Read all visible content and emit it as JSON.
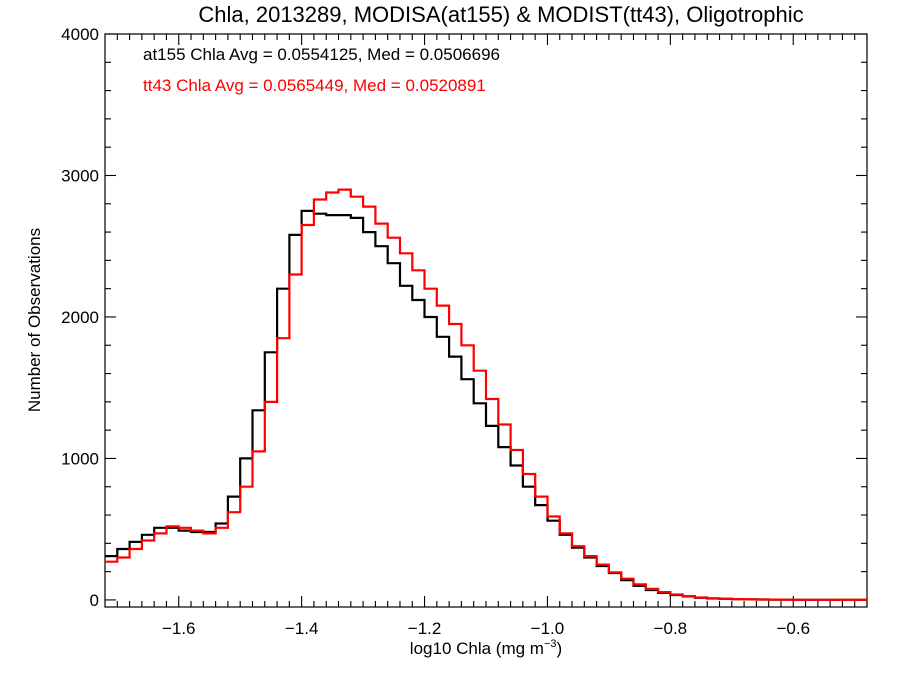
{
  "chart_data": {
    "type": "line",
    "title": "Chla, 2013289, MODISA(at155) & MODIST(tt43), Oligotrophic",
    "xlabel_base": "log10 Chla (mg m",
    "xlabel_exp": "−3",
    "xlabel_close": ")",
    "ylabel": "Number of Observations",
    "xlim": [
      -1.72,
      -0.48
    ],
    "ylim": [
      -50,
      4000
    ],
    "xticks": [
      -1.6,
      -1.4,
      -1.2,
      -1.0,
      -0.8,
      -0.6
    ],
    "xtick_labels": [
      "−1.6",
      "−1.4",
      "−1.2",
      "−1.0",
      "−0.8",
      "−0.6"
    ],
    "yticks": [
      0,
      1000,
      2000,
      3000,
      4000
    ],
    "ytick_labels": [
      "0",
      "1000",
      "2000",
      "3000",
      "4000"
    ],
    "grid": false,
    "step": true,
    "annotations": [
      {
        "text": "at155 Chla Avg = 0.0554125, Med = 0.0506696",
        "color": "#000000"
      },
      {
        "text": "tt43 Chla Avg = 0.0565449, Med = 0.0520891",
        "color": "#ff0000"
      }
    ],
    "series": [
      {
        "color": "#000000",
        "x": [
          -1.72,
          -1.7,
          -1.68,
          -1.66,
          -1.64,
          -1.62,
          -1.6,
          -1.58,
          -1.56,
          -1.54,
          -1.52,
          -1.5,
          -1.48,
          -1.46,
          -1.44,
          -1.42,
          -1.4,
          -1.38,
          -1.36,
          -1.34,
          -1.32,
          -1.3,
          -1.28,
          -1.26,
          -1.24,
          -1.22,
          -1.2,
          -1.18,
          -1.16,
          -1.14,
          -1.12,
          -1.1,
          -1.08,
          -1.06,
          -1.04,
          -1.02,
          -1.0,
          -0.98,
          -0.96,
          -0.94,
          -0.92,
          -0.9,
          -0.88,
          -0.86,
          -0.84,
          -0.82,
          -0.8,
          -0.78,
          -0.76,
          -0.74,
          -0.72,
          -0.7,
          -0.68,
          -0.66,
          -0.64,
          -0.62,
          -0.6,
          -0.58,
          -0.56,
          -0.54,
          -0.52,
          -0.5,
          -0.48
        ],
        "values": [
          310,
          360,
          410,
          460,
          510,
          510,
          490,
          480,
          480,
          540,
          730,
          1000,
          1340,
          1750,
          2200,
          2580,
          2750,
          2730,
          2720,
          2720,
          2700,
          2600,
          2500,
          2380,
          2220,
          2120,
          2000,
          1860,
          1720,
          1560,
          1390,
          1230,
          1080,
          950,
          800,
          670,
          560,
          460,
          370,
          300,
          240,
          190,
          140,
          100,
          70,
          50,
          35,
          25,
          15,
          10,
          8,
          5,
          4,
          3,
          2,
          2,
          1,
          1,
          1,
          0,
          0,
          0,
          0
        ]
      },
      {
        "color": "#ff0000",
        "x": [
          -1.72,
          -1.7,
          -1.68,
          -1.66,
          -1.64,
          -1.62,
          -1.6,
          -1.58,
          -1.56,
          -1.54,
          -1.52,
          -1.5,
          -1.48,
          -1.46,
          -1.44,
          -1.42,
          -1.4,
          -1.38,
          -1.36,
          -1.34,
          -1.32,
          -1.3,
          -1.28,
          -1.26,
          -1.24,
          -1.22,
          -1.2,
          -1.18,
          -1.16,
          -1.14,
          -1.12,
          -1.1,
          -1.08,
          -1.06,
          -1.04,
          -1.02,
          -1.0,
          -0.98,
          -0.96,
          -0.94,
          -0.92,
          -0.9,
          -0.88,
          -0.86,
          -0.84,
          -0.82,
          -0.8,
          -0.78,
          -0.76,
          -0.74,
          -0.72,
          -0.7,
          -0.68,
          -0.66,
          -0.64,
          -0.62,
          -0.6,
          -0.58,
          -0.56,
          -0.54,
          -0.52,
          -0.5,
          -0.48
        ],
        "values": [
          270,
          300,
          360,
          420,
          470,
          520,
          510,
          490,
          470,
          510,
          620,
          800,
          1050,
          1400,
          1850,
          2300,
          2650,
          2830,
          2880,
          2900,
          2850,
          2780,
          2660,
          2560,
          2450,
          2330,
          2200,
          2080,
          1950,
          1800,
          1620,
          1420,
          1240,
          1060,
          890,
          730,
          590,
          470,
          380,
          310,
          250,
          195,
          150,
          110,
          78,
          55,
          38,
          26,
          17,
          11,
          8,
          6,
          4,
          3,
          2,
          2,
          1,
          1,
          1,
          0,
          0,
          0,
          0
        ]
      }
    ]
  }
}
